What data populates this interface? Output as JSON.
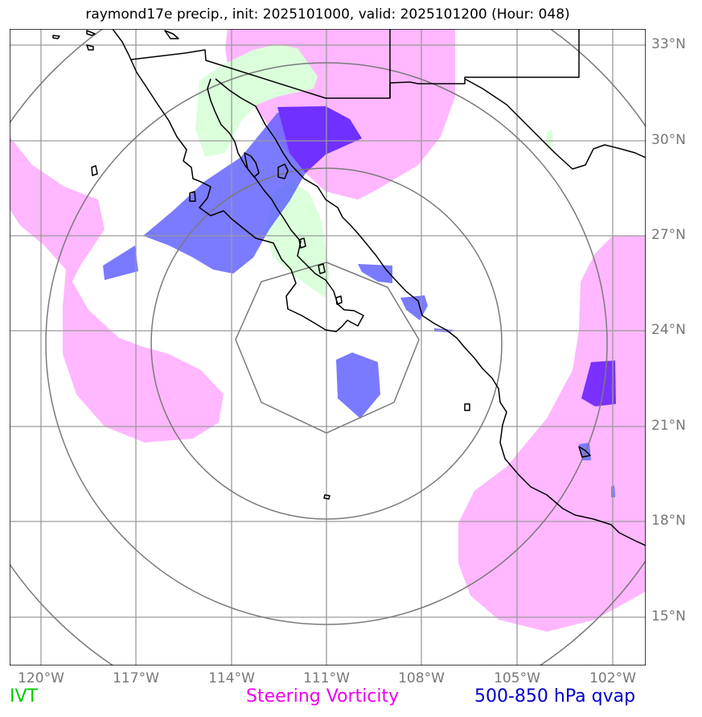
{
  "title": "raymond17e precip., init: 2025101000, valid: 2025101200 (Hour: 048)",
  "lat_labels": [
    "33°N",
    "30°N",
    "27°N",
    "24°N",
    "21°N",
    "18°N",
    "15°N"
  ],
  "lon_labels": [
    "120°W",
    "117°W",
    "114°W",
    "111°W",
    "108°W",
    "105°W",
    "102°W"
  ],
  "legend": {
    "ivt": "IVT",
    "vorticity": "Steering Vorticity",
    "qvap": "500-850 hPa qvap"
  },
  "colors": {
    "ivt": "#00cc00",
    "vorticity": "#ee00ee",
    "qvap": "#0000cc",
    "ivt_fill": "#ccffcc",
    "vorticity_fill": "#ffb0ff",
    "qvap_fill": "#4444ff",
    "grid": "#9a9a9a",
    "rings": "#777777",
    "coast": "#000000"
  }
}
